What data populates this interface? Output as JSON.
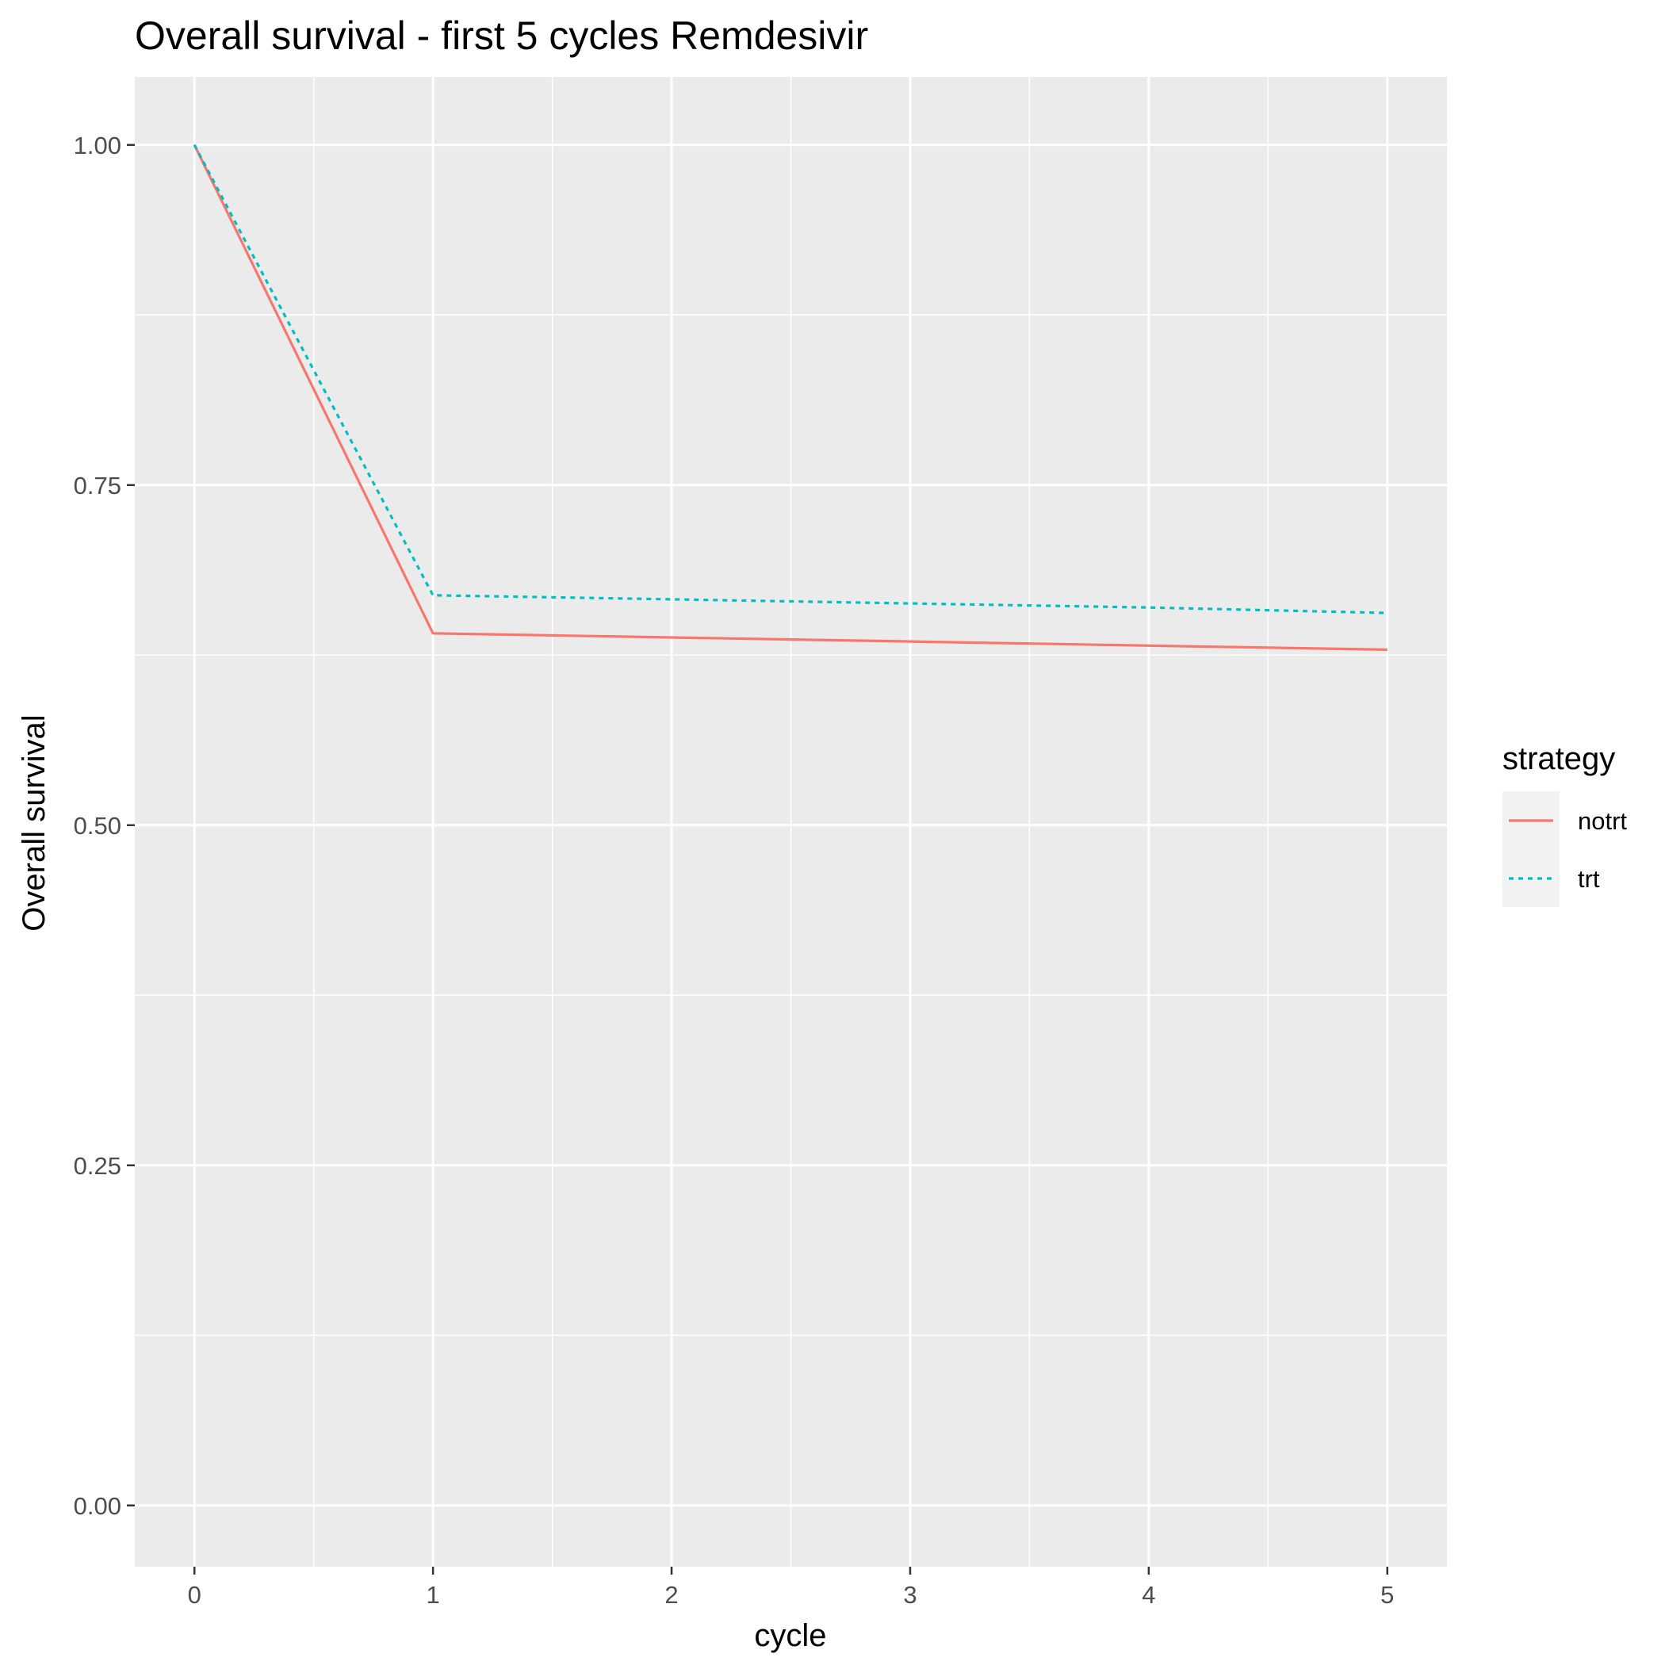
{
  "chart_data": {
    "type": "line",
    "title": "Overall survival - first 5 cycles Remdesivir",
    "xlabel": "cycle",
    "ylabel": "Overall survival",
    "xlim": [
      -0.25,
      5.25
    ],
    "ylim": [
      -0.045,
      1.05
    ],
    "x_ticks": [
      0,
      1,
      2,
      3,
      4,
      5
    ],
    "x_tick_labels": [
      "0",
      "1",
      "2",
      "3",
      "4",
      "5"
    ],
    "y_ticks": [
      0,
      0.25,
      0.5,
      0.75,
      1
    ],
    "y_tick_labels": [
      "0.00",
      "0.25",
      "0.50",
      "0.75",
      "1.00"
    ],
    "grid": true,
    "legend": {
      "title": "strategy",
      "placement": "right"
    },
    "x": [
      0,
      1,
      2,
      3,
      4,
      5
    ],
    "series": [
      {
        "name": "notrt",
        "color": "#F8766D",
        "linetype": "solid",
        "values": [
          1.0,
          0.641,
          0.638,
          0.635,
          0.632,
          0.629
        ]
      },
      {
        "name": "trt",
        "color": "#00BFC4",
        "linetype": "dotted",
        "values": [
          1.0,
          0.669,
          0.666,
          0.663,
          0.66,
          0.656
        ]
      }
    ]
  }
}
